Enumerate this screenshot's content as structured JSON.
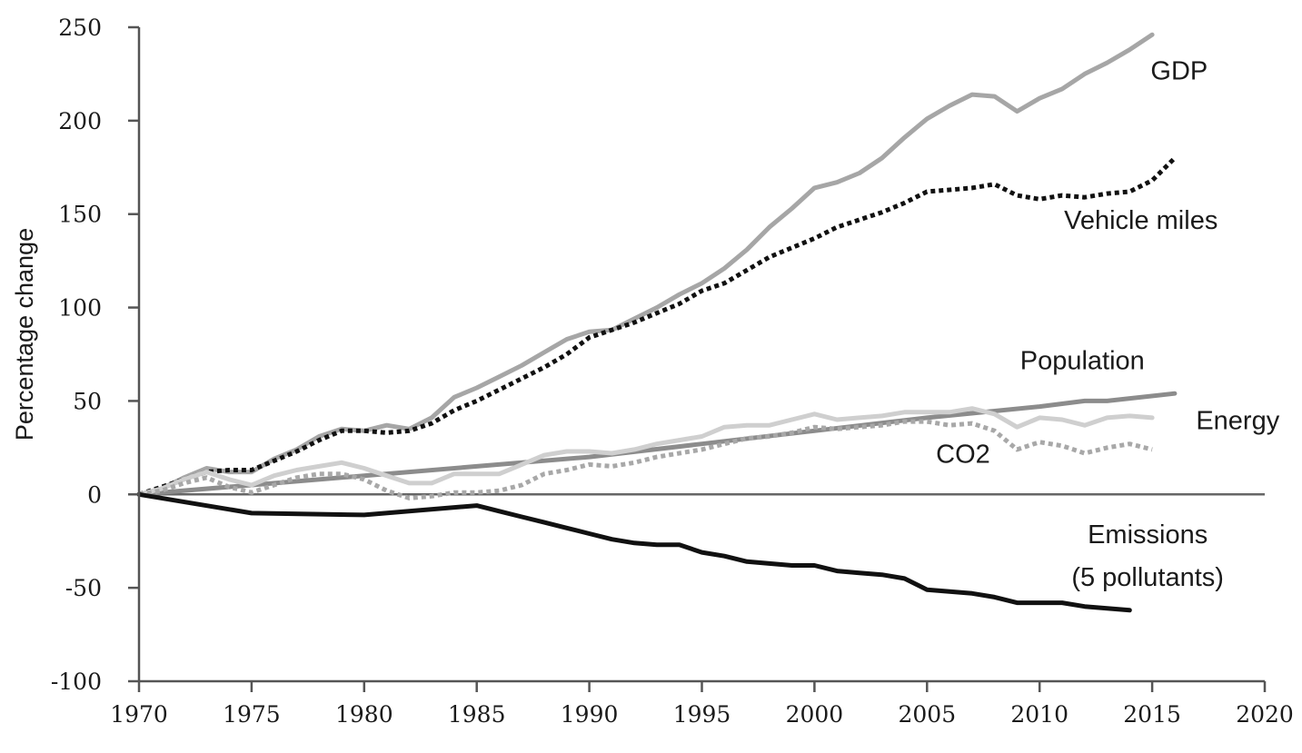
{
  "chart_data": {
    "type": "line",
    "ylabel": "Percentage change",
    "xlim": [
      1970,
      2020
    ],
    "ylim": [
      -100,
      250
    ],
    "x_ticks": [
      "1970",
      "1975",
      "1980",
      "1985",
      "1990",
      "1995",
      "2000",
      "2005",
      "2010",
      "2015",
      "2020"
    ],
    "y_ticks": [
      "250",
      "200",
      "150",
      "100",
      "50",
      "0",
      "-50",
      "-100"
    ],
    "series": [
      {
        "name": "GDP",
        "color": "#a6a6a6",
        "style": "solid",
        "x": [
          1970,
          1971,
          1972,
          1973,
          1974,
          1975,
          1976,
          1977,
          1978,
          1979,
          1980,
          1981,
          1982,
          1983,
          1984,
          1985,
          1986,
          1987,
          1988,
          1989,
          1990,
          1991,
          1992,
          1993,
          1994,
          1995,
          1996,
          1997,
          1998,
          1999,
          2000,
          2001,
          2002,
          2003,
          2004,
          2005,
          2006,
          2007,
          2008,
          2009,
          2010,
          2011,
          2012,
          2013,
          2014,
          2015
        ],
        "y": [
          0,
          3,
          9,
          14,
          12,
          12,
          19,
          24,
          31,
          35,
          34,
          37,
          35,
          41,
          52,
          57,
          63,
          69,
          76,
          83,
          87,
          88,
          94,
          100,
          107,
          113,
          121,
          131,
          143,
          153,
          164,
          167,
          172,
          180,
          191,
          201,
          208,
          214,
          213,
          205,
          212,
          217,
          225,
          231,
          238,
          246
        ]
      },
      {
        "name": "Vehicle miles",
        "color": "#111111",
        "style": "dotted",
        "x": [
          1970,
          1971,
          1972,
          1973,
          1974,
          1975,
          1976,
          1977,
          1978,
          1979,
          1980,
          1981,
          1982,
          1983,
          1984,
          1985,
          1986,
          1987,
          1988,
          1989,
          1990,
          1991,
          1992,
          1993,
          1994,
          1995,
          1996,
          1997,
          1998,
          1999,
          2000,
          2001,
          2002,
          2003,
          2004,
          2005,
          2006,
          2007,
          2008,
          2009,
          2010,
          2011,
          2012,
          2013,
          2014,
          2015,
          2016
        ],
        "y": [
          0,
          4,
          8,
          12,
          13,
          13,
          18,
          23,
          29,
          34,
          34,
          33,
          34,
          38,
          45,
          50,
          56,
          62,
          68,
          75,
          84,
          88,
          92,
          97,
          102,
          109,
          113,
          120,
          127,
          132,
          137,
          143,
          147,
          151,
          156,
          162,
          163,
          164,
          166,
          160,
          158,
          160,
          159,
          161,
          162,
          168,
          180
        ]
      },
      {
        "name": "Population",
        "color": "#8c8c8c",
        "style": "solid",
        "x": [
          1970,
          1975,
          1980,
          1985,
          1990,
          1995,
          2000,
          2005,
          2010,
          2012,
          2013,
          2016
        ],
        "y": [
          0,
          5,
          10,
          15,
          20,
          27,
          34,
          41,
          47,
          50,
          50,
          54
        ]
      },
      {
        "name": "Energy",
        "color": "#cfcfcf",
        "style": "solid",
        "x": [
          1970,
          1971,
          1972,
          1973,
          1974,
          1975,
          1976,
          1977,
          1978,
          1979,
          1980,
          1981,
          1982,
          1983,
          1984,
          1985,
          1986,
          1987,
          1988,
          1989,
          1990,
          1991,
          1992,
          1993,
          1994,
          1995,
          1996,
          1997,
          1998,
          1999,
          2000,
          2001,
          2002,
          2003,
          2004,
          2005,
          2006,
          2007,
          2008,
          2009,
          2010,
          2011,
          2012,
          2013,
          2014,
          2015
        ],
        "y": [
          0,
          3,
          8,
          12,
          8,
          5,
          10,
          13,
          15,
          17,
          14,
          10,
          6,
          6,
          11,
          11,
          11,
          16,
          21,
          23,
          23,
          22,
          24,
          27,
          29,
          31,
          36,
          37,
          37,
          40,
          43,
          40,
          41,
          42,
          44,
          44,
          44,
          46,
          43,
          36,
          41,
          40,
          37,
          41,
          42,
          41
        ]
      },
      {
        "name": "CO2",
        "color": "#a8a8a8",
        "style": "dotted",
        "x": [
          1970,
          1971,
          1972,
          1973,
          1974,
          1975,
          1976,
          1977,
          1978,
          1979,
          1980,
          1981,
          1982,
          1983,
          1984,
          1985,
          1986,
          1987,
          1988,
          1989,
          1990,
          1991,
          1992,
          1993,
          1994,
          1995,
          1996,
          1997,
          1998,
          1999,
          2000,
          2001,
          2002,
          2003,
          2004,
          2005,
          2006,
          2007,
          2008,
          2009,
          2010,
          2011,
          2012,
          2013,
          2014,
          2015
        ],
        "y": [
          0,
          2,
          6,
          9,
          4,
          1,
          5,
          9,
          11,
          11,
          8,
          2,
          -2,
          -1,
          1,
          1,
          2,
          5,
          11,
          13,
          16,
          15,
          17,
          20,
          22,
          24,
          27,
          30,
          31,
          33,
          36,
          35,
          36,
          37,
          39,
          39,
          37,
          38,
          34,
          24,
          28,
          26,
          22,
          25,
          27,
          24
        ]
      },
      {
        "name": "Emissions\n(5 pollutants)",
        "color": "#111111",
        "style": "solid",
        "x": [
          1970,
          1975,
          1980,
          1985,
          1986,
          1987,
          1988,
          1989,
          1990,
          1991,
          1992,
          1993,
          1994,
          1995,
          1996,
          1997,
          1998,
          1999,
          2000,
          2001,
          2002,
          2003,
          2004,
          2005,
          2006,
          2007,
          2008,
          2009,
          2010,
          2011,
          2012,
          2013,
          2014
        ],
        "y": [
          0,
          -10,
          -11,
          -6,
          -9,
          -12,
          -15,
          -18,
          -21,
          -24,
          -26,
          -27,
          -27,
          -31,
          -33,
          -36,
          -37,
          -38,
          -38,
          -41,
          -42,
          -43,
          -45,
          -51,
          -52,
          -53,
          -55,
          -58,
          -58,
          -58,
          -60,
          -61,
          -62
        ]
      }
    ],
    "series_labels": [
      {
        "text": "GDP",
        "anchor_x": 2016.2,
        "anchor_y": 222
      },
      {
        "text": "Vehicle miles",
        "anchor_x": 2014.5,
        "anchor_y": 142
      },
      {
        "text": "Population",
        "anchor_x": 2011.9,
        "anchor_y": 67
      },
      {
        "text": "Energy",
        "anchor_x": 2018.8,
        "anchor_y": 35
      },
      {
        "text": "CO2",
        "anchor_x": 2006.6,
        "anchor_y": 17
      },
      {
        "text": "Emissions",
        "anchor_x": 2014.8,
        "anchor_y": -26
      },
      {
        "text": "(5 pollutants)",
        "anchor_x": 2014.8,
        "anchor_y": -49
      }
    ]
  }
}
